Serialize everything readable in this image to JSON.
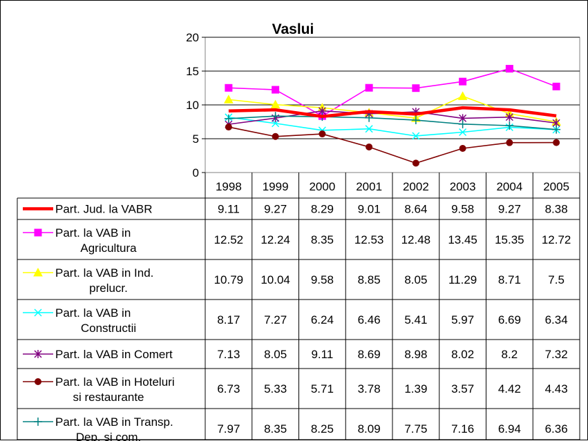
{
  "chart_data": {
    "type": "line",
    "title": "Vaslui",
    "xlabel": "",
    "ylabel": "",
    "ylim": [
      0,
      20
    ],
    "yticks": [
      0,
      5,
      10,
      15,
      20
    ],
    "grid": true,
    "categories": [
      "1998",
      "1999",
      "2000",
      "2001",
      "2002",
      "2003",
      "2004",
      "2005"
    ],
    "series": [
      {
        "name_lines": [
          "Part. Jud. la VABR"
        ],
        "color": "#ff0000",
        "marker": "none",
        "thick": true,
        "values": [
          9.11,
          9.27,
          8.29,
          9.01,
          8.64,
          9.58,
          9.27,
          8.38
        ],
        "labels": [
          "9.11",
          "9.27",
          "8.29",
          "9.01",
          "8.64",
          "9.58",
          "9.27",
          "8.38"
        ]
      },
      {
        "name_lines": [
          "Part. la VAB in",
          "Agricultura"
        ],
        "color": "#ff00ff",
        "marker": "square",
        "values": [
          12.52,
          12.24,
          8.35,
          12.53,
          12.48,
          13.45,
          15.35,
          12.72
        ],
        "labels": [
          "12.52",
          "12.24",
          "8.35",
          "12.53",
          "12.48",
          "13.45",
          "15.35",
          "12.72"
        ]
      },
      {
        "name_lines": [
          "Part. la VAB in Ind.",
          "prelucr."
        ],
        "color": "#ffff00",
        "marker": "triangle",
        "values": [
          10.79,
          10.04,
          9.58,
          8.85,
          8.05,
          11.29,
          8.71,
          7.5
        ],
        "labels": [
          "10.79",
          "10.04",
          "9.58",
          "8.85",
          "8.05",
          "11.29",
          "8.71",
          "7.5"
        ]
      },
      {
        "name_lines": [
          "Part. la VAB in",
          "Constructii"
        ],
        "color": "#00ffff",
        "marker": "x",
        "values": [
          8.17,
          7.27,
          6.24,
          6.46,
          5.41,
          5.97,
          6.69,
          6.34
        ],
        "labels": [
          "8.17",
          "7.27",
          "6.24",
          "6.46",
          "5.41",
          "5.97",
          "6.69",
          "6.34"
        ]
      },
      {
        "name_lines": [
          "Part. la VAB in Comert"
        ],
        "color": "#800080",
        "marker": "star",
        "values": [
          7.13,
          8.05,
          9.11,
          8.69,
          8.98,
          8.02,
          8.2,
          7.32
        ],
        "labels": [
          "7.13",
          "8.05",
          "9.11",
          "8.69",
          "8.98",
          "8.02",
          "8.2",
          "7.32"
        ]
      },
      {
        "name_lines": [
          "Part. la VAB in Hoteluri",
          "si restaurante"
        ],
        "color": "#800000",
        "marker": "circle",
        "values": [
          6.73,
          5.33,
          5.71,
          3.78,
          1.39,
          3.57,
          4.42,
          4.43
        ],
        "labels": [
          "6.73",
          "5.33",
          "5.71",
          "3.78",
          "1.39",
          "3.57",
          "4.42",
          "4.43"
        ]
      },
      {
        "name_lines": [
          "Part. la VAB in Transp.",
          "Dep. si com."
        ],
        "color": "#008080",
        "marker": "plus",
        "values": [
          7.97,
          8.35,
          8.25,
          8.09,
          7.75,
          7.16,
          6.94,
          6.36
        ],
        "labels": [
          "7.97",
          "8.35",
          "8.25",
          "8.09",
          "7.75",
          "7.16",
          "6.94",
          "6.36"
        ]
      }
    ]
  }
}
